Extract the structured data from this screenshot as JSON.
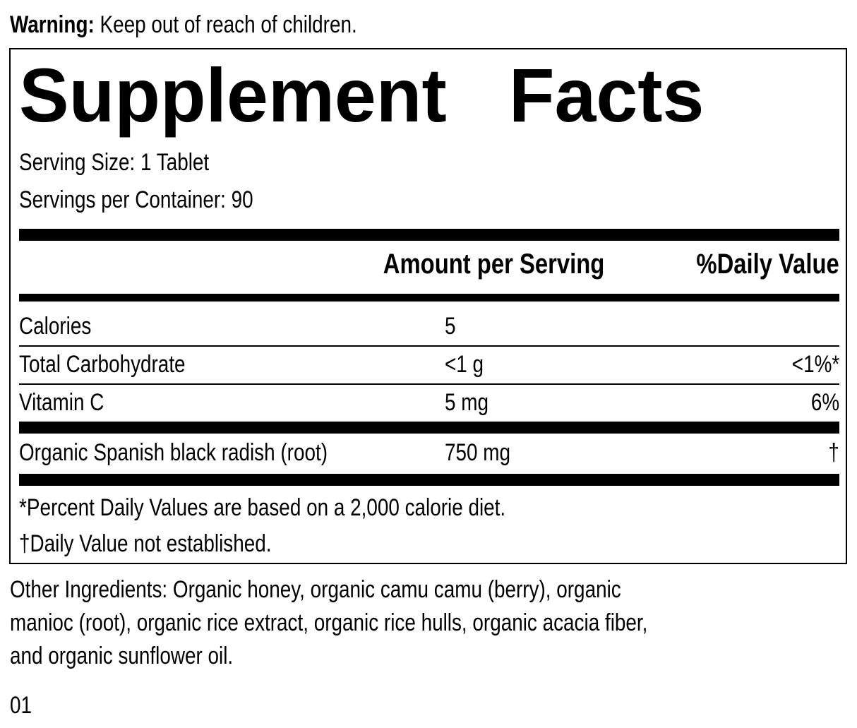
{
  "warning": {
    "label": "Warning:",
    "text": " Keep out of reach of children."
  },
  "title": "Supplement   Facts",
  "serving_size": "Serving Size: 1 Tablet",
  "servings_per_container": "Servings per Container: 90",
  "headers": {
    "amount": "Amount per Serving",
    "dv": "%Daily Value"
  },
  "rows": [
    {
      "name": "Calories",
      "amount": "5",
      "dv": ""
    },
    {
      "name": "Total Carbohydrate",
      "amount": "<1 g",
      "dv": "<1%*"
    },
    {
      "name": "Vitamin C",
      "amount": "5 mg",
      "dv": "6%"
    },
    {
      "name": "Organic Spanish black radish (root)",
      "amount": "750 mg",
      "dv": "†"
    }
  ],
  "footnotes": [
    "*Percent Daily Values are based on a 2,000 calorie diet.",
    "†Daily Value not established."
  ],
  "other_ingredients": [
    "Other Ingredients: Organic honey, organic camu camu (berry), organic",
    "manioc (root), organic rice extract, organic rice hulls, organic acacia fiber,",
    "and organic sunflower oil."
  ],
  "code": "01"
}
